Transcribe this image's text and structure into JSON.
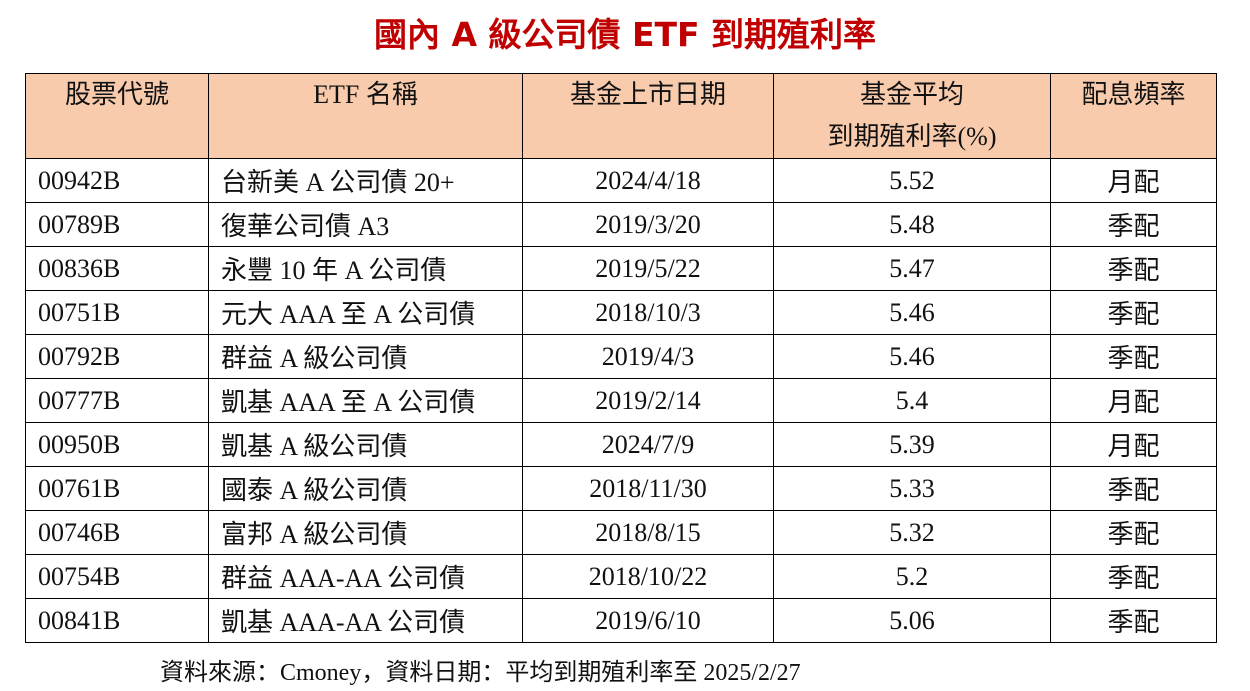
{
  "title": "國內 A 級公司債 ETF 到期殖利率",
  "table": {
    "header": [
      "股票代號",
      "ETF 名稱",
      "基金上市日期",
      [
        "基金平均",
        "到期殖利率(%)"
      ],
      "配息頻率"
    ],
    "rows": [
      [
        "00942B",
        "台新美 A 公司債 20+",
        "2024/4/18",
        "5.52",
        "月配"
      ],
      [
        "00789B",
        "復華公司債 A3",
        "2019/3/20",
        "5.48",
        "季配"
      ],
      [
        "00836B",
        "永豐 10 年 A 公司債",
        "2019/5/22",
        "5.47",
        "季配"
      ],
      [
        "00751B",
        "元大 AAA 至 A 公司債",
        "2018/10/3",
        "5.46",
        "季配"
      ],
      [
        "00792B",
        "群益 A 級公司債",
        "2019/4/3",
        "5.46",
        "季配"
      ],
      [
        "00777B",
        "凱基 AAA 至 A 公司債",
        "2019/2/14",
        "5.4",
        "月配"
      ],
      [
        "00950B",
        "凱基 A 級公司債",
        "2024/7/9",
        "5.39",
        "月配"
      ],
      [
        "00761B",
        "國泰 A 級公司債",
        "2018/11/30",
        "5.33",
        "季配"
      ],
      [
        "00746B",
        "富邦 A 級公司債",
        "2018/8/15",
        "5.32",
        "季配"
      ],
      [
        "00754B",
        "群益 AAA-AA 公司債",
        "2018/10/22",
        "5.2",
        "季配"
      ],
      [
        "00841B",
        "凱基 AAA-AA 公司債",
        "2019/6/10",
        "5.06",
        "季配"
      ]
    ]
  },
  "footnote": "資料來源：Cmoney，資料日期：平均到期殖利率至 2025/2/27"
}
